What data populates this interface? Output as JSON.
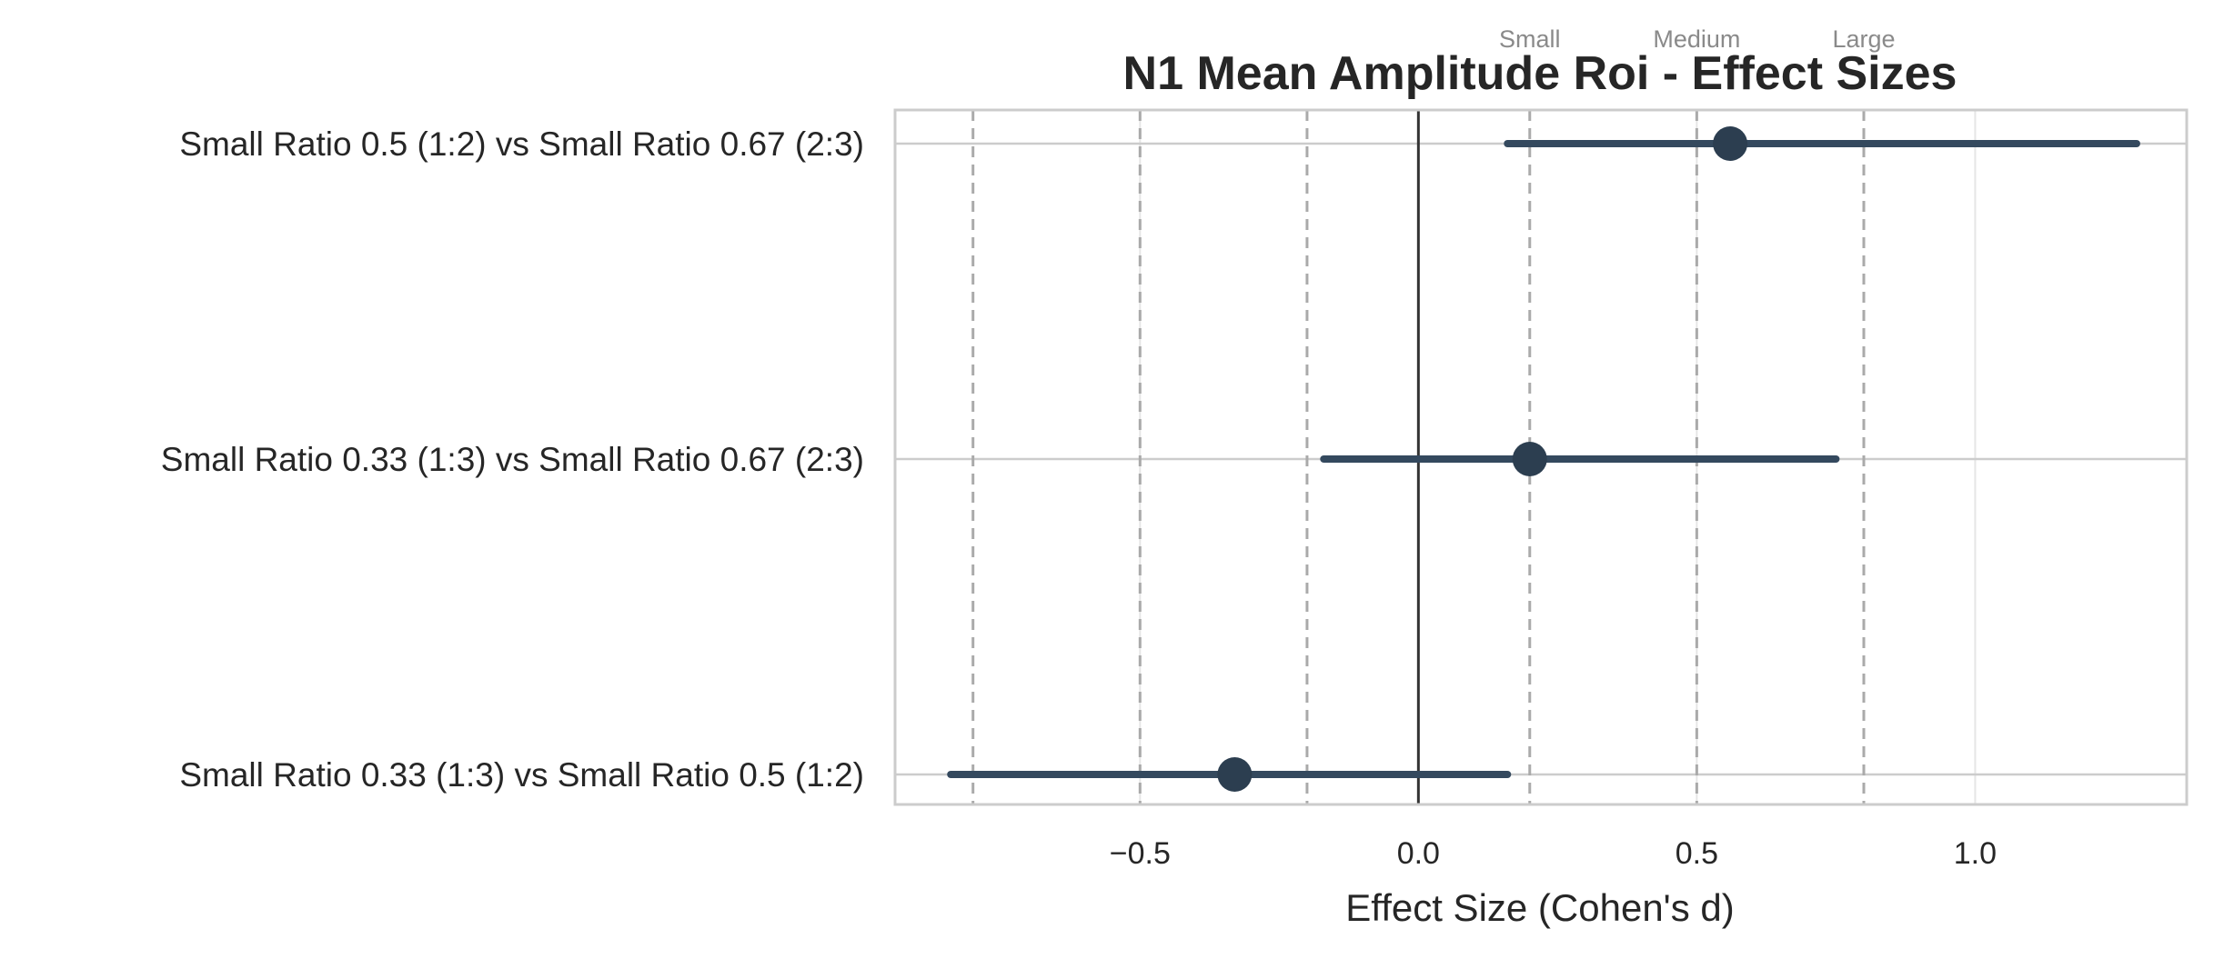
{
  "chart_data": {
    "type": "forest",
    "title": "N1 Mean Amplitude Roi - Effect Sizes",
    "xlabel": "Effect Size (Cohen's d)",
    "ylabel": "",
    "xlim": [
      -0.94,
      1.38
    ],
    "xticks": [
      -0.5,
      0.0,
      0.5,
      1.0
    ],
    "xtick_labels": [
      "−0.5",
      "0.0",
      "0.5",
      "1.0"
    ],
    "grid": true,
    "zero_line": 0.0,
    "reference_lines": [
      -0.8,
      -0.5,
      -0.2,
      0.2,
      0.5,
      0.8
    ],
    "reference_labels": [
      {
        "text": "Small",
        "x": 0.2
      },
      {
        "text": "Medium",
        "x": 0.5
      },
      {
        "text": "Large",
        "x": 0.8
      }
    ],
    "comparisons": [
      {
        "label": "Small Ratio 0.5 (1:2) vs Small Ratio 0.67 (2:3)",
        "d": 0.56,
        "ci_low": 0.16,
        "ci_high": 1.29
      },
      {
        "label": "Small Ratio 0.33 (1:3) vs Small Ratio 0.67 (2:3)",
        "d": 0.2,
        "ci_low": -0.17,
        "ci_high": 0.75
      },
      {
        "label": "Small Ratio 0.33 (1:3) vs Small Ratio 0.5 (1:2)",
        "d": -0.33,
        "ci_low": -0.84,
        "ci_high": 0.16
      }
    ],
    "colors": {
      "point": "#2c3e50",
      "ci_line": "#34495e",
      "zero_line": "#333333",
      "reference_line": "#aaaaaa",
      "grid": "#e6e6e6",
      "frame": "#cccccc"
    }
  }
}
